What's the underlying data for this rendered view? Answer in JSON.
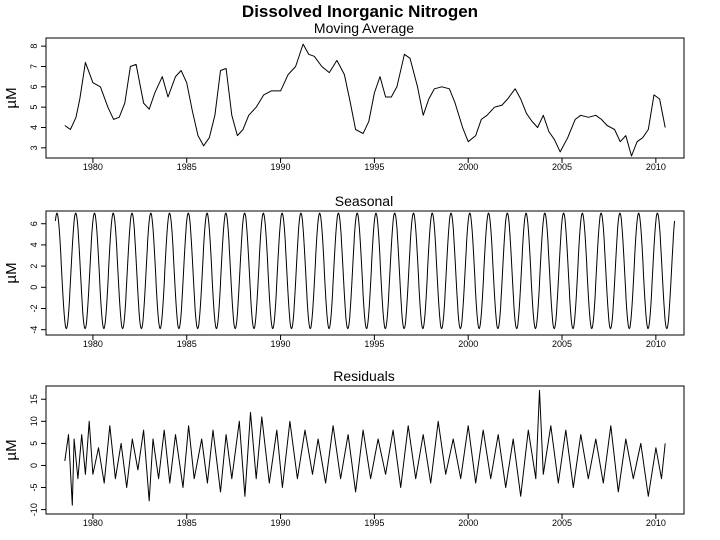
{
  "title": "Dissolved Inorganic Nitrogen",
  "chart_data": [
    {
      "type": "line",
      "title": "Moving Average",
      "ylabel": "µM",
      "xlim": [
        1977.5,
        2011.5
      ],
      "ylim": [
        2.5,
        8.4
      ],
      "x_ticks": [
        1980,
        1985,
        1990,
        1995,
        2000,
        2005,
        2010
      ],
      "x_tick_labels": [
        "1980",
        "1985",
        "1990",
        "1995",
        "2000",
        "2005",
        "2010"
      ],
      "y_ticks": [
        3,
        4,
        5,
        6,
        7,
        8
      ],
      "y_tick_labels": [
        "3",
        "4",
        "5",
        "6",
        "7",
        "8"
      ],
      "grid": false,
      "series": [
        {
          "x": [
            1978.5,
            1978.8,
            1979.1,
            1979.3,
            1979.6,
            1980.0,
            1980.4,
            1980.8,
            1981.1,
            1981.4,
            1981.7,
            1982.0,
            1982.3,
            1982.7,
            1983.0,
            1983.3,
            1983.7,
            1984.0,
            1984.4,
            1984.7,
            1985.0,
            1985.3,
            1985.6,
            1985.9,
            1986.2,
            1986.5,
            1986.8,
            1987.1,
            1987.4,
            1987.7,
            1988.0,
            1988.3,
            1988.7,
            1989.1,
            1989.5,
            1990.0,
            1990.4,
            1990.8,
            1991.2,
            1991.5,
            1991.8,
            1992.2,
            1992.6,
            1993.0,
            1993.4,
            1993.7,
            1994.0,
            1994.4,
            1994.7,
            1995.0,
            1995.3,
            1995.6,
            1995.9,
            1996.2,
            1996.6,
            1996.9,
            1997.3,
            1997.6,
            1997.9,
            1998.2,
            1998.6,
            1999.0,
            1999.3,
            1999.7,
            2000.0,
            2000.4,
            2000.7,
            2001.0,
            2001.4,
            2001.8,
            2002.1,
            2002.5,
            2002.8,
            2003.1,
            2003.4,
            2003.7,
            2004.0,
            2004.3,
            2004.6,
            2004.9,
            2005.3,
            2005.7,
            2006.0,
            2006.4,
            2006.8,
            2007.1,
            2007.4,
            2007.8,
            2008.1,
            2008.4,
            2008.7,
            2009.0,
            2009.3,
            2009.6,
            2009.9,
            2010.2,
            2010.5
          ],
          "values": [
            4.1,
            3.9,
            4.5,
            5.4,
            7.2,
            6.2,
            6.0,
            5.0,
            4.4,
            4.5,
            5.2,
            7.0,
            7.1,
            5.2,
            4.9,
            5.7,
            6.5,
            5.5,
            6.5,
            6.8,
            6.2,
            4.8,
            3.6,
            3.1,
            3.5,
            4.6,
            6.8,
            6.9,
            4.6,
            3.6,
            3.9,
            4.6,
            5.0,
            5.6,
            5.8,
            5.8,
            6.6,
            7.0,
            8.1,
            7.6,
            7.5,
            7.0,
            6.7,
            7.3,
            6.6,
            5.3,
            3.9,
            3.7,
            4.3,
            5.7,
            6.5,
            5.5,
            5.5,
            6.0,
            7.6,
            7.4,
            6.0,
            4.6,
            5.4,
            5.9,
            6.0,
            5.9,
            5.2,
            4.0,
            3.3,
            3.6,
            4.4,
            4.6,
            5.0,
            5.1,
            5.4,
            5.9,
            5.4,
            4.7,
            4.3,
            4.0,
            4.6,
            3.8,
            3.4,
            2.8,
            3.5,
            4.4,
            4.6,
            4.5,
            4.6,
            4.4,
            4.1,
            3.9,
            3.3,
            3.6,
            2.6,
            3.3,
            3.5,
            3.9,
            5.6,
            5.4,
            4.0
          ]
        }
      ]
    },
    {
      "type": "line",
      "title": "Seasonal",
      "ylabel": "µM",
      "xlim": [
        1977.5,
        2011.5
      ],
      "ylim": [
        -4.5,
        7.2
      ],
      "x_ticks": [
        1980,
        1985,
        1990,
        1995,
        2000,
        2005,
        2010
      ],
      "x_tick_labels": [
        "1980",
        "1985",
        "1990",
        "1995",
        "2000",
        "2005",
        "2010"
      ],
      "y_ticks": [
        -4,
        -2,
        0,
        2,
        4,
        6
      ],
      "y_tick_labels": [
        "-4",
        "-2",
        "0",
        "2",
        "4",
        "6"
      ],
      "grid": false,
      "pattern": {
        "start": 1978.0,
        "end": 2011.0,
        "period_years": 1.0,
        "annual_max": 7.0,
        "annual_max_month": 1,
        "annual_min": -3.9,
        "annual_min_month": 7
      }
    },
    {
      "type": "line",
      "title": "Residuals",
      "ylabel": "µM",
      "xlim": [
        1977.5,
        2011.5
      ],
      "ylim": [
        -11,
        18
      ],
      "x_ticks": [
        1980,
        1985,
        1990,
        1995,
        2000,
        2005,
        2010
      ],
      "x_tick_labels": [
        "1980",
        "1985",
        "1990",
        "1995",
        "2000",
        "2005",
        "2010"
      ],
      "y_ticks": [
        -10,
        -5,
        0,
        5,
        10,
        15
      ],
      "y_tick_labels": [
        "-10",
        "-5",
        "0",
        "5",
        "10",
        "15"
      ],
      "grid": false,
      "series": [
        {
          "x": [
            1978.5,
            1978.7,
            1978.9,
            1979.0,
            1979.2,
            1979.4,
            1979.6,
            1979.8,
            1980.0,
            1980.3,
            1980.6,
            1980.9,
            1981.2,
            1981.5,
            1981.8,
            1982.1,
            1982.4,
            1982.7,
            1983.0,
            1983.2,
            1983.5,
            1983.8,
            1984.1,
            1984.4,
            1984.8,
            1985.1,
            1985.4,
            1985.8,
            1986.1,
            1986.4,
            1986.8,
            1987.1,
            1987.4,
            1987.8,
            1988.1,
            1988.4,
            1988.7,
            1989.0,
            1989.4,
            1989.8,
            1990.1,
            1990.5,
            1990.9,
            1991.3,
            1991.7,
            1992.0,
            1992.4,
            1992.8,
            1993.2,
            1993.6,
            1994.0,
            1994.4,
            1994.8,
            1995.2,
            1995.6,
            1996.0,
            1996.4,
            1996.8,
            1997.2,
            1997.6,
            1998.0,
            1998.4,
            1998.8,
            1999.2,
            1999.6,
            2000.0,
            2000.4,
            2000.8,
            2001.2,
            2001.6,
            2002.0,
            2002.4,
            2002.8,
            2003.2,
            2003.6,
            2003.8,
            2004.0,
            2004.4,
            2004.8,
            2005.2,
            2005.6,
            2006.0,
            2006.4,
            2006.8,
            2007.2,
            2007.6,
            2008.0,
            2008.4,
            2008.8,
            2009.2,
            2009.6,
            2010.0,
            2010.3,
            2010.5
          ],
          "values": [
            1,
            7,
            -9,
            6,
            -3,
            7,
            -2,
            10,
            -2,
            4,
            -4,
            9,
            -3,
            5,
            -5,
            6,
            -1,
            8,
            -8,
            6,
            -3,
            8,
            -4,
            7,
            -5,
            9,
            -3,
            6,
            -4,
            8,
            -6,
            7,
            -3,
            10,
            -7,
            12,
            -3,
            11,
            -4,
            8,
            -5,
            10,
            -3,
            8,
            -2,
            6,
            -4,
            9,
            -3,
            7,
            -6,
            8,
            -3,
            6,
            -2,
            8,
            -5,
            9,
            -3,
            7,
            -4,
            10,
            -2,
            6,
            -3,
            9,
            -4,
            8,
            -3,
            7,
            -5,
            6,
            -7,
            8,
            -3,
            17,
            -2,
            9,
            -4,
            8,
            -5,
            7,
            -3,
            6,
            -4,
            9,
            -6,
            6,
            -3,
            5,
            -7,
            4,
            -3,
            5
          ]
        }
      ]
    }
  ]
}
